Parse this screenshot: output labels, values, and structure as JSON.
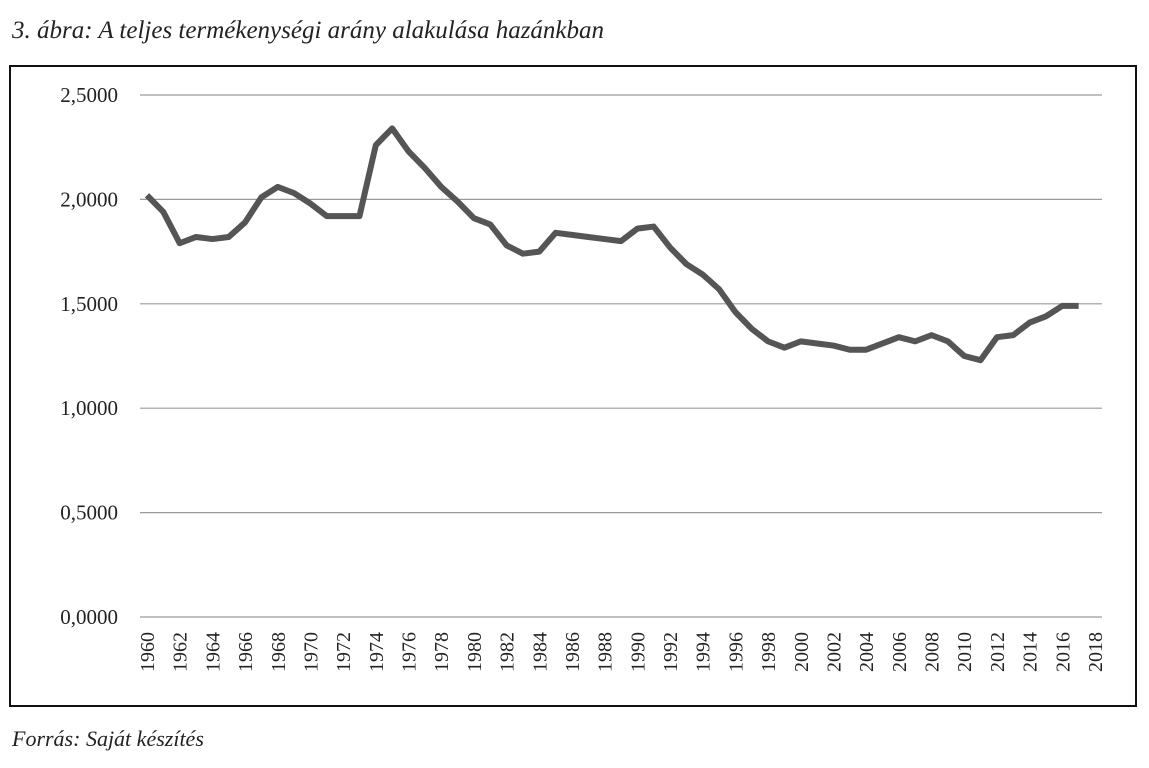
{
  "chart_data": {
    "type": "line",
    "title": "3. ábra: A teljes termékenységi arány alakulása hazánkban",
    "source": "Forrás: Saját készítés",
    "x": [
      1960,
      1961,
      1962,
      1963,
      1964,
      1965,
      1966,
      1967,
      1968,
      1969,
      1970,
      1971,
      1972,
      1973,
      1974,
      1975,
      1976,
      1977,
      1978,
      1979,
      1980,
      1981,
      1982,
      1983,
      1984,
      1985,
      1986,
      1987,
      1988,
      1989,
      1990,
      1991,
      1992,
      1993,
      1994,
      1995,
      1996,
      1997,
      1998,
      1999,
      2000,
      2001,
      2002,
      2003,
      2004,
      2005,
      2006,
      2007,
      2008,
      2009,
      2010,
      2011,
      2012,
      2013,
      2014,
      2015,
      2016,
      2017
    ],
    "series": [
      {
        "color": "#555555",
        "values": [
          2.02,
          1.94,
          1.79,
          1.82,
          1.81,
          1.82,
          1.89,
          2.01,
          2.06,
          2.03,
          1.98,
          1.92,
          1.92,
          1.92,
          2.26,
          2.34,
          2.23,
          2.15,
          2.06,
          1.99,
          1.91,
          1.88,
          1.78,
          1.74,
          1.75,
          1.84,
          1.83,
          1.82,
          1.81,
          1.8,
          1.86,
          1.87,
          1.77,
          1.69,
          1.64,
          1.57,
          1.46,
          1.38,
          1.32,
          1.29,
          1.32,
          1.31,
          1.3,
          1.28,
          1.28,
          1.31,
          1.34,
          1.32,
          1.35,
          1.32,
          1.25,
          1.23,
          1.34,
          1.35,
          1.41,
          1.44,
          1.49,
          1.49
        ]
      }
    ],
    "xlim": [
      1960,
      2018
    ],
    "xticks": [
      1960,
      1962,
      1964,
      1966,
      1968,
      1970,
      1972,
      1974,
      1976,
      1978,
      1980,
      1982,
      1984,
      1986,
      1988,
      1990,
      1992,
      1994,
      1996,
      1998,
      2000,
      2002,
      2004,
      2006,
      2008,
      2010,
      2012,
      2014,
      2016,
      2018
    ],
    "ylim": [
      0,
      2.5
    ],
    "yticks": [
      {
        "value": 0,
        "label": "0,0000"
      },
      {
        "value": 0.5,
        "label": "0,5000"
      },
      {
        "value": 1,
        "label": "1,0000"
      },
      {
        "value": 1.5,
        "label": "1,5000"
      },
      {
        "value": 2,
        "label": "2,0000"
      },
      {
        "value": 2.5,
        "label": "2,5000"
      }
    ],
    "grid": true
  }
}
